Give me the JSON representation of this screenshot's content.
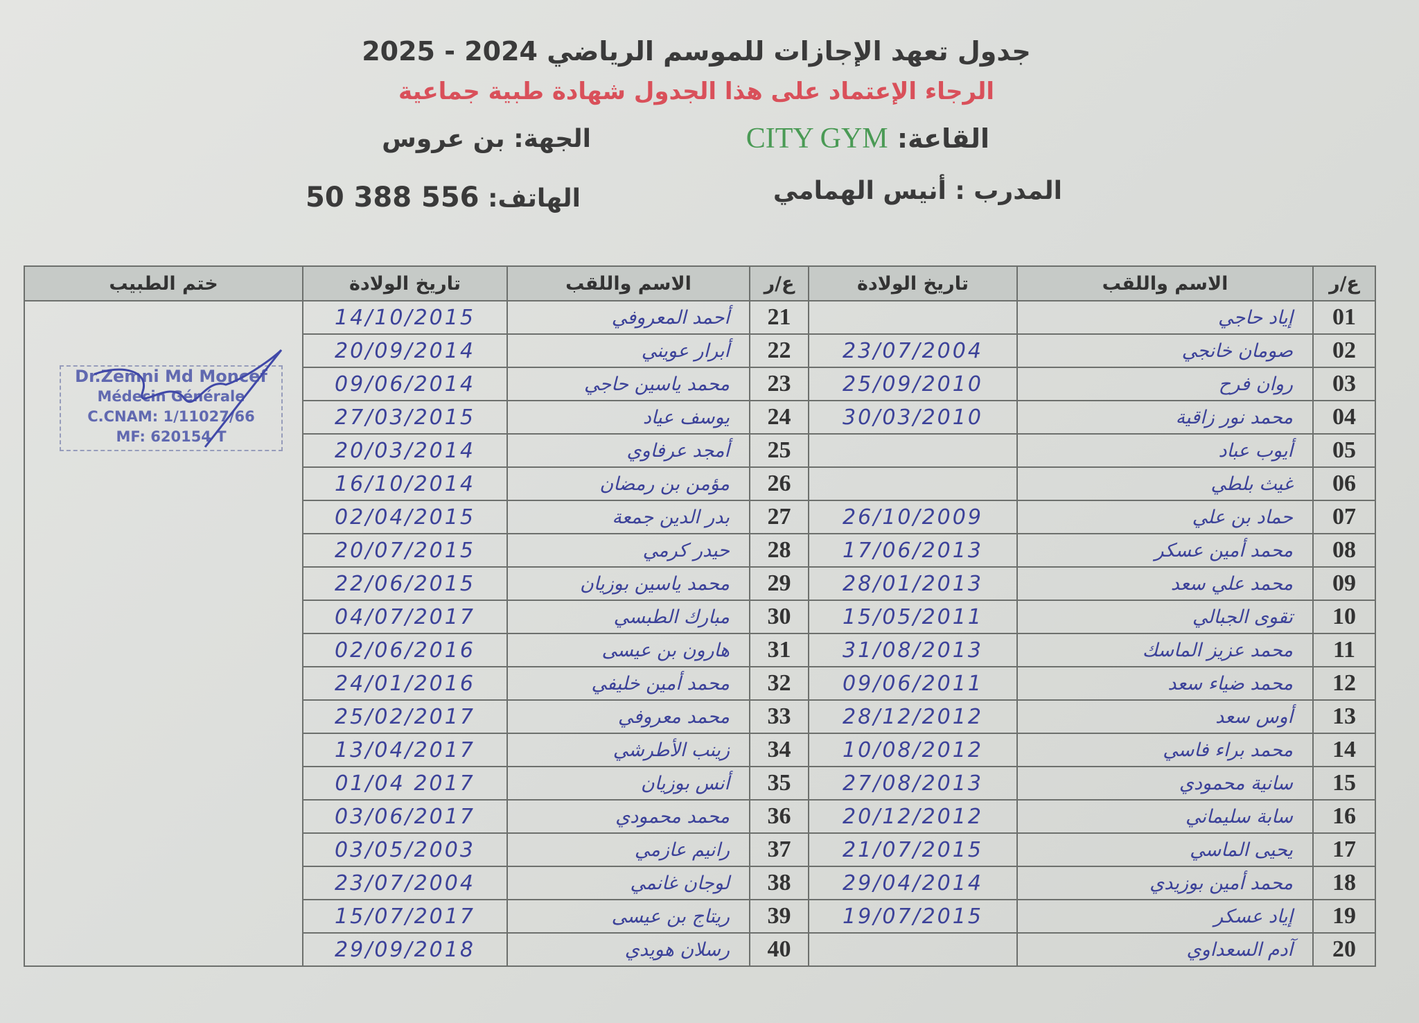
{
  "header": {
    "title": "جدول تعهد الإجازات للموسم الرياضي 2024 - 2025",
    "subtitle": "الرجاء الإعتماد على هذا الجدول شهادة طبية جماعية",
    "hall_label": "القاعة:",
    "hall_value": "CITY GYM",
    "region_label": "الجهة:",
    "region_value": "بن عروس",
    "coach_label": "المدرب :",
    "coach_value": "أنيس الهمامي",
    "phone_label": "الهاتف:",
    "phone_value": "50 388 556"
  },
  "colors": {
    "subtitle": "#d9505a",
    "hall": "#4a9a55",
    "handwriting": "#3c4299",
    "stamp": "#4b55a8"
  },
  "table": {
    "headers": {
      "num": "ع/ر",
      "name": "الاسم واللقب",
      "dob": "تاريخ الولادة",
      "stamp": "ختم الطبيب"
    },
    "rows": [
      {
        "n": "01",
        "name": "إياد حاجي",
        "dob": "",
        "n2": "21",
        "name2": "أحمد المعروفي",
        "dob2": "14/10/2015"
      },
      {
        "n": "02",
        "name": "صومان خانجي",
        "dob": "23/07/2004",
        "n2": "22",
        "name2": "أبرار عويني",
        "dob2": "20/09/2014"
      },
      {
        "n": "03",
        "name": "روان فرح",
        "dob": "25/09/2010",
        "n2": "23",
        "name2": "محمد ياسين حاجي",
        "dob2": "09/06/2014"
      },
      {
        "n": "04",
        "name": "محمد نور زاقية",
        "dob": "30/03/2010",
        "n2": "24",
        "name2": "يوسف عياد",
        "dob2": "27/03/2015"
      },
      {
        "n": "05",
        "name": "أيوب عباد",
        "dob": "",
        "n2": "25",
        "name2": "أمجد عرفاوي",
        "dob2": "20/03/2014"
      },
      {
        "n": "06",
        "name": "غيث بلطي",
        "dob": "",
        "n2": "26",
        "name2": "مؤمن بن رمضان",
        "dob2": "16/10/2014"
      },
      {
        "n": "07",
        "name": "حماد بن علي",
        "dob": "26/10/2009",
        "n2": "27",
        "name2": "بدر الدين جمعة",
        "dob2": "02/04/2015"
      },
      {
        "n": "08",
        "name": "محمد أمين عسكر",
        "dob": "17/06/2013",
        "n2": "28",
        "name2": "حيدر كرمي",
        "dob2": "20/07/2015"
      },
      {
        "n": "09",
        "name": "محمد علي سعد",
        "dob": "28/01/2013",
        "n2": "29",
        "name2": "محمد ياسين بوزيان",
        "dob2": "22/06/2015"
      },
      {
        "n": "10",
        "name": "تقوى الجبالي",
        "dob": "15/05/2011",
        "n2": "30",
        "name2": "مبارك الطبسي",
        "dob2": "04/07/2017"
      },
      {
        "n": "11",
        "name": "محمد عزيز الماسك",
        "dob": "31/08/2013",
        "n2": "31",
        "name2": "هارون بن عيسى",
        "dob2": "02/06/2016"
      },
      {
        "n": "12",
        "name": "محمد ضياء سعد",
        "dob": "09/06/2011",
        "n2": "32",
        "name2": "محمد أمين خليفي",
        "dob2": "24/01/2016"
      },
      {
        "n": "13",
        "name": "أوس سعد",
        "dob": "28/12/2012",
        "n2": "33",
        "name2": "محمد معروفي",
        "dob2": "25/02/2017"
      },
      {
        "n": "14",
        "name": "محمد براء فاسي",
        "dob": "10/08/2012",
        "n2": "34",
        "name2": "زينب الأطرشي",
        "dob2": "13/04/2017"
      },
      {
        "n": "15",
        "name": "سانية محمودي",
        "dob": "27/08/2013",
        "n2": "35",
        "name2": "أنس بوزيان",
        "dob2": "01/04 2017"
      },
      {
        "n": "16",
        "name": "سابة سليماني",
        "dob": "20/12/2012",
        "n2": "36",
        "name2": "محمد محمودي",
        "dob2": "03/06/2017"
      },
      {
        "n": "17",
        "name": "يحيى الماسي",
        "dob": "21/07/2015",
        "n2": "37",
        "name2": "رانيم عازمي",
        "dob2": "03/05/2003"
      },
      {
        "n": "18",
        "name": "محمد أمين بوزيدي",
        "dob": "29/04/2014",
        "n2": "38",
        "name2": "لوجان غانمي",
        "dob2": "23/07/2004"
      },
      {
        "n": "19",
        "name": "إياد عسكر",
        "dob": "19/07/2015",
        "n2": "39",
        "name2": "ريتاج بن عيسى",
        "dob2": "15/07/2017"
      },
      {
        "n": "20",
        "name": "آدم السعداوي",
        "dob": "",
        "n2": "40",
        "name2": "رسلان هويدي",
        "dob2": "29/09/2018"
      }
    ]
  },
  "stamp": {
    "line1": "Dr.Zemni Md Moncef",
    "line2": "Médecin Générale",
    "line3": "C.CNAM: 1/11027/66",
    "line4": "MF: 620154 T"
  }
}
